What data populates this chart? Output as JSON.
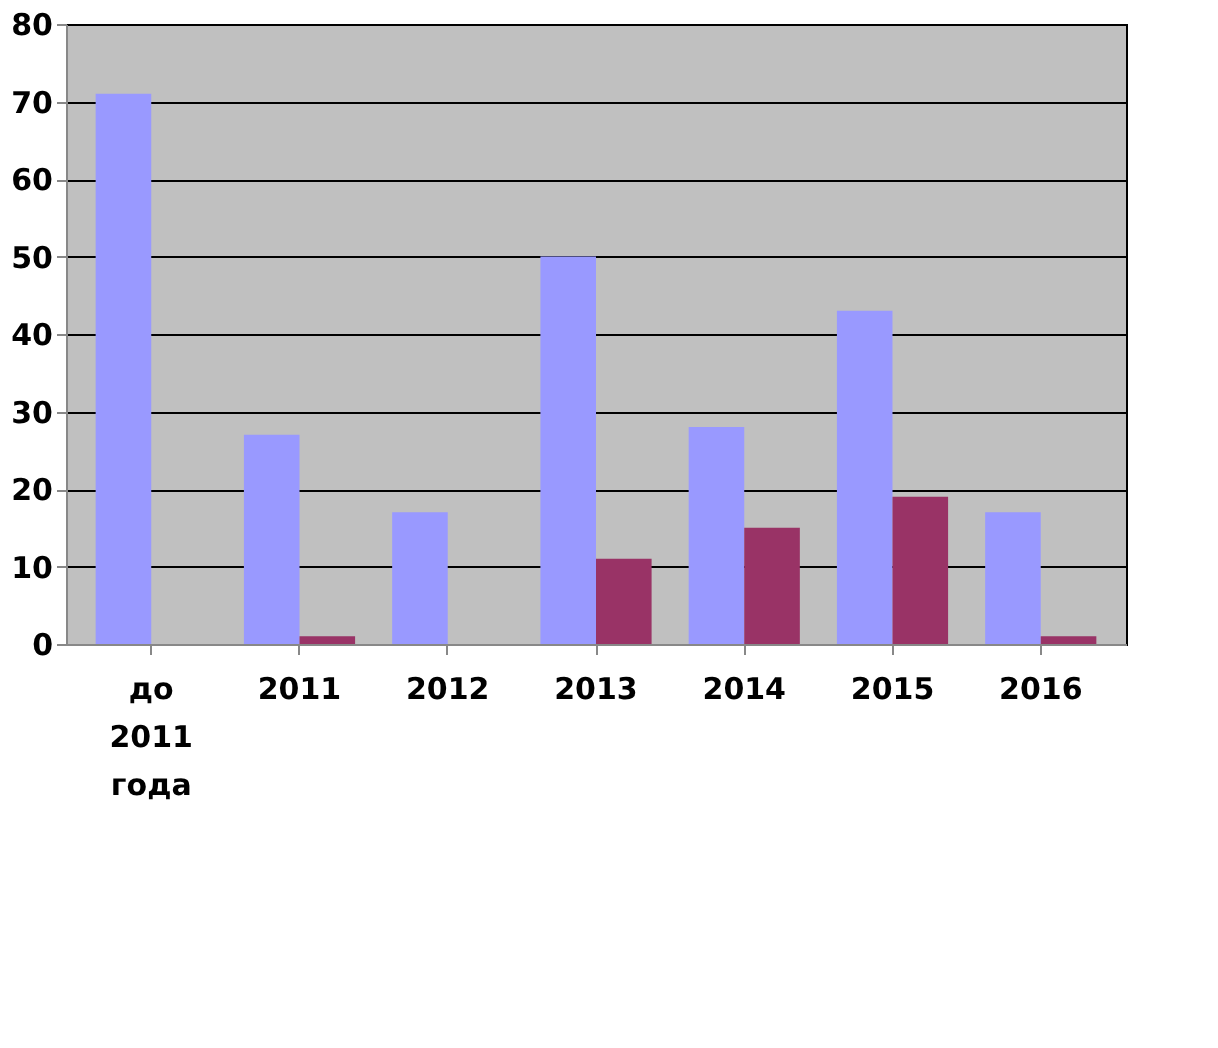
{
  "chart_data": {
    "type": "bar",
    "categories": [
      "до 2011 года",
      "2011",
      "2012",
      "2013",
      "2014",
      "2015",
      "2016"
    ],
    "series": [
      {
        "color": "#9999ff",
        "values": [
          71,
          27,
          17,
          50,
          28,
          43,
          17
        ]
      },
      {
        "color": "#993366",
        "values": [
          0,
          1,
          0,
          11,
          15,
          19,
          1
        ]
      }
    ],
    "ylim": [
      0,
      80
    ],
    "yticks": [
      0,
      10,
      20,
      30,
      40,
      50,
      60,
      70,
      80
    ],
    "grid": "y"
  }
}
